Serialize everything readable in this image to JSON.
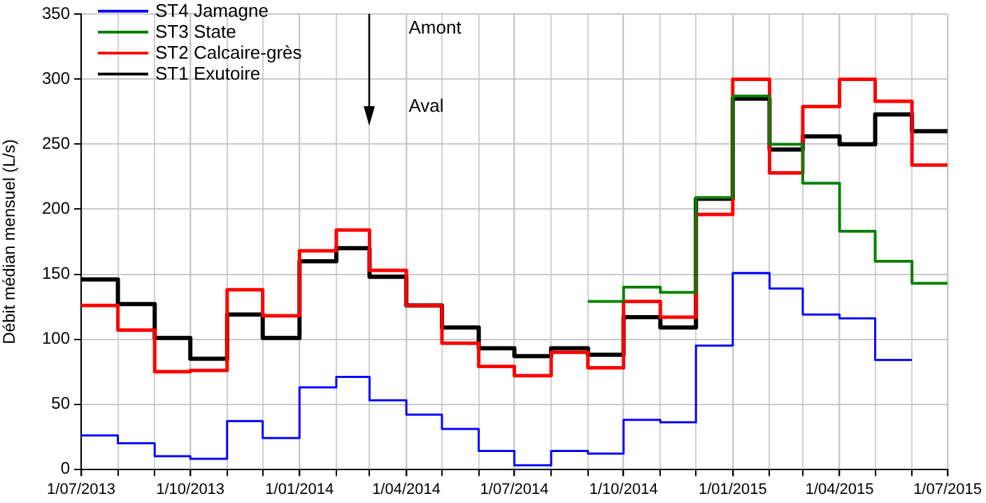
{
  "chart_data": {
    "type": "step",
    "ylabel": "Débit médian mensuel (L/s)",
    "x": [
      "2013-07",
      "2013-08",
      "2013-09",
      "2013-10",
      "2013-11",
      "2013-12",
      "2014-01",
      "2014-02",
      "2014-03",
      "2014-04",
      "2014-05",
      "2014-06",
      "2014-07",
      "2014-08",
      "2014-09",
      "2014-10",
      "2014-11",
      "2014-12",
      "2015-01",
      "2015-02",
      "2015-03",
      "2015-04",
      "2015-05",
      "2015-06",
      "2015-07"
    ],
    "series": [
      {
        "name": "ST4 Jamagne",
        "color": "#0000ff",
        "values": [
          26,
          20,
          10,
          8,
          37,
          24,
          63,
          71,
          53,
          42,
          31,
          14,
          3,
          14,
          12,
          38,
          36,
          95,
          151,
          139,
          119,
          116,
          84,
          84,
          null
        ]
      },
      {
        "name": "ST3 State",
        "color": "#008000",
        "values": [
          null,
          null,
          null,
          null,
          null,
          null,
          null,
          null,
          null,
          null,
          null,
          null,
          null,
          null,
          129,
          140,
          136,
          209,
          287,
          250,
          220,
          183,
          160,
          143,
          143
        ]
      },
      {
        "name": "ST2 Calcaire-grès",
        "color": "#ff0000",
        "values": [
          126,
          107,
          75,
          76,
          138,
          118,
          168,
          184,
          153,
          126,
          97,
          79,
          72,
          90,
          78,
          129,
          117,
          196,
          300,
          228,
          279,
          300,
          283,
          234,
          234
        ]
      },
      {
        "name": "ST1 Exutoire",
        "color": "#000000",
        "values": [
          146,
          127,
          101,
          85,
          119,
          101,
          160,
          170,
          148,
          126,
          109,
          93,
          87,
          93,
          88,
          117,
          109,
          208,
          285,
          246,
          256,
          250,
          273,
          260,
          260
        ]
      }
    ],
    "xlim": [
      "2013-07",
      "2015-07"
    ],
    "xticks": [
      {
        "value": "2013-07",
        "label": "1/07/2013"
      },
      {
        "value": "2013-08",
        "label": null
      },
      {
        "value": "2013-09",
        "label": null
      },
      {
        "value": "2013-10",
        "label": "1/10/2013"
      },
      {
        "value": "2013-11",
        "label": null
      },
      {
        "value": "2013-12",
        "label": null
      },
      {
        "value": "2014-01",
        "label": "1/01/2014"
      },
      {
        "value": "2014-02",
        "label": null
      },
      {
        "value": "2014-03",
        "label": null
      },
      {
        "value": "2014-04",
        "label": "1/04/2014"
      },
      {
        "value": "2014-05",
        "label": null
      },
      {
        "value": "2014-06",
        "label": null
      },
      {
        "value": "2014-07",
        "label": "1/07/2014"
      },
      {
        "value": "2014-08",
        "label": null
      },
      {
        "value": "2014-09",
        "label": null
      },
      {
        "value": "2014-10",
        "label": "1/10/2014"
      },
      {
        "value": "2014-11",
        "label": null
      },
      {
        "value": "2014-12",
        "label": null
      },
      {
        "value": "2015-01",
        "label": "1/01/2015"
      },
      {
        "value": "2015-02",
        "label": null
      },
      {
        "value": "2015-03",
        "label": null
      },
      {
        "value": "2015-04",
        "label": "1/04/2015"
      },
      {
        "value": "2015-05",
        "label": null
      },
      {
        "value": "2015-06",
        "label": null
      },
      {
        "value": "2015-07",
        "label": "1/07/2015"
      }
    ],
    "ylim": [
      0,
      350
    ],
    "yticks": [
      0,
      50,
      100,
      150,
      200,
      250,
      300,
      350
    ],
    "grid": true,
    "legend": "top left",
    "annotations": [
      "Amont",
      "Aval"
    ]
  }
}
